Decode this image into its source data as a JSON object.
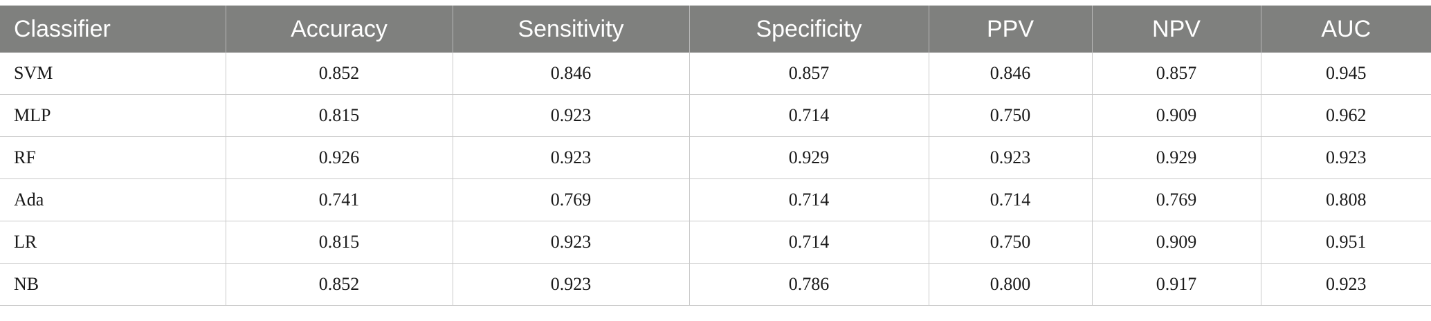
{
  "table": {
    "headers": [
      "Classifier",
      "Accuracy",
      "Sensitivity",
      "Specificity",
      "PPV",
      "NPV",
      "AUC"
    ],
    "rows": [
      [
        "SVM",
        "0.852",
        "0.846",
        "0.857",
        "0.846",
        "0.857",
        "0.945"
      ],
      [
        "MLP",
        "0.815",
        "0.923",
        "0.714",
        "0.750",
        "0.909",
        "0.962"
      ],
      [
        "RF",
        "0.926",
        "0.923",
        "0.929",
        "0.923",
        "0.929",
        "0.923"
      ],
      [
        "Ada",
        "0.741",
        "0.769",
        "0.714",
        "0.714",
        "0.769",
        "0.808"
      ],
      [
        "LR",
        "0.815",
        "0.923",
        "0.714",
        "0.750",
        "0.909",
        "0.951"
      ],
      [
        "NB",
        "0.852",
        "0.923",
        "0.786",
        "0.800",
        "0.917",
        "0.923"
      ]
    ]
  }
}
